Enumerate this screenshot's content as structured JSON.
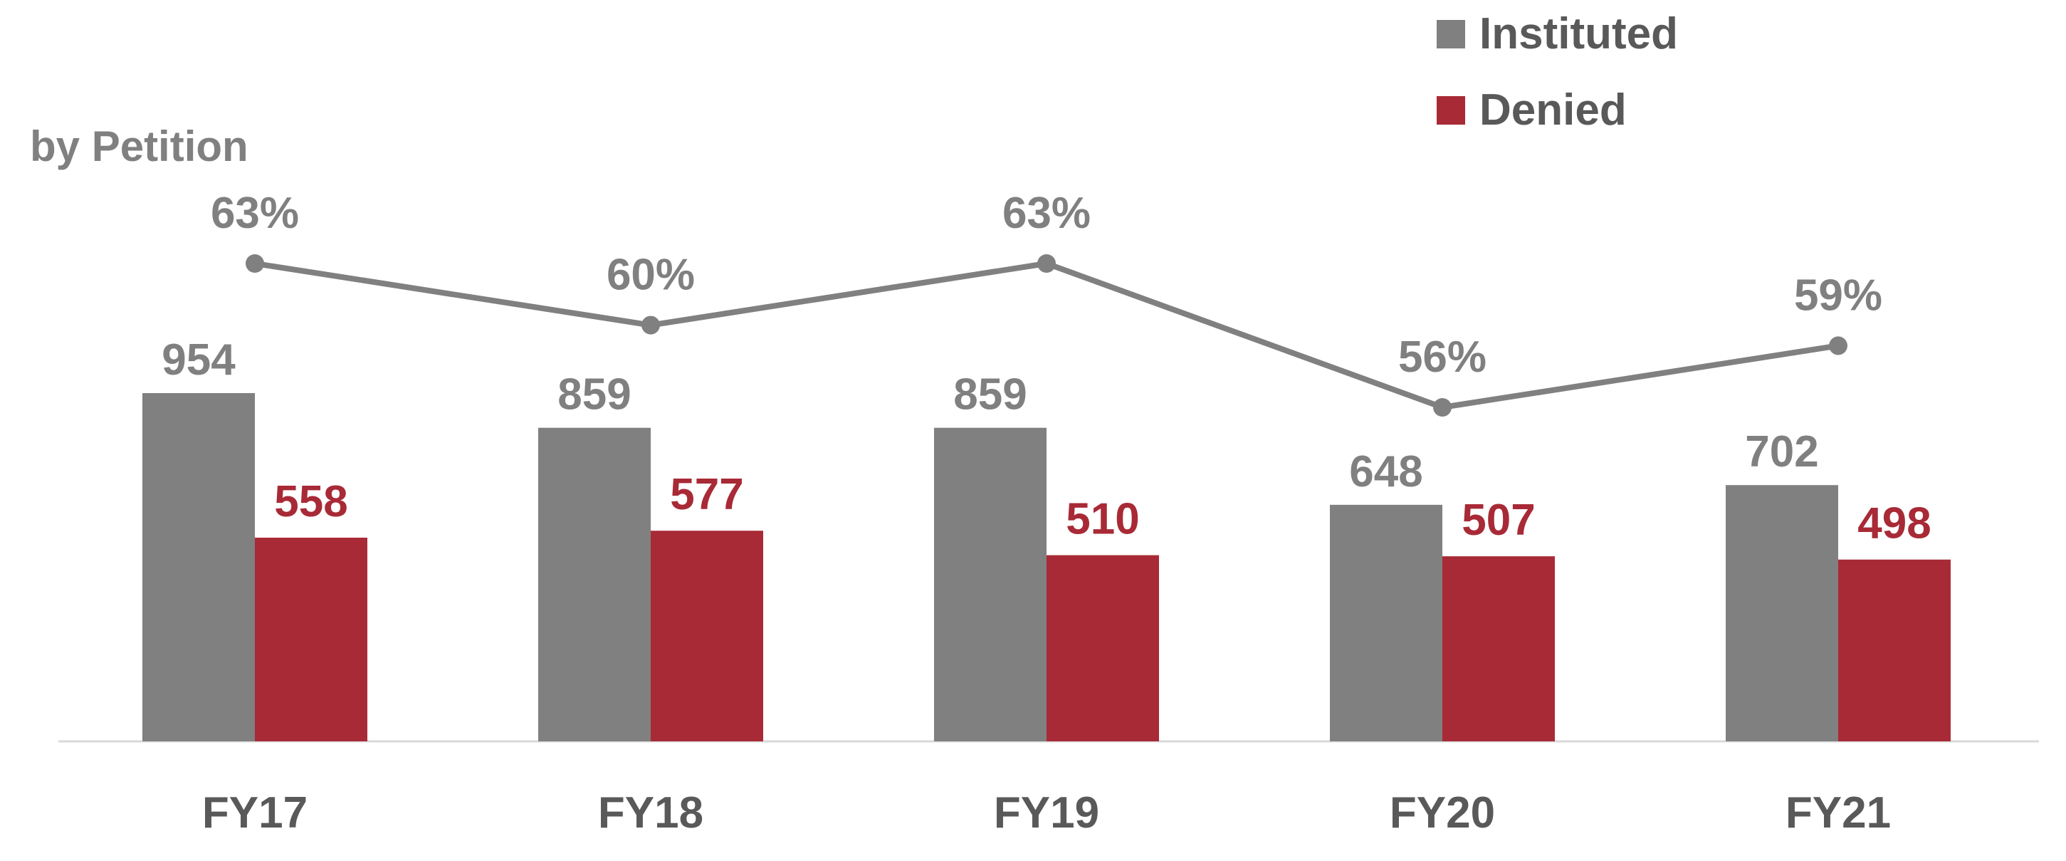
{
  "chart_data": {
    "type": "bar",
    "subtitle": "by Petition",
    "categories": [
      "FY17",
      "FY18",
      "FY19",
      "FY20",
      "FY21"
    ],
    "series": [
      {
        "name": "Instituted",
        "type": "bar",
        "values": [
          954,
          859,
          859,
          648,
          702
        ],
        "color": "#808080"
      },
      {
        "name": "Denied",
        "type": "bar",
        "values": [
          558,
          577,
          510,
          507,
          498
        ],
        "color": "#a82a36"
      },
      {
        "type": "line",
        "values": [
          63,
          60,
          63,
          56,
          59
        ],
        "labels": [
          "63%",
          "60%",
          "63%",
          "56%",
          "59%"
        ],
        "color": "#808080"
      }
    ],
    "ylim": [
      0,
      954
    ],
    "grid": false,
    "legend": "top-right"
  },
  "colors": {
    "axis_label": "#595959",
    "baseline": "#d9d9d9"
  }
}
